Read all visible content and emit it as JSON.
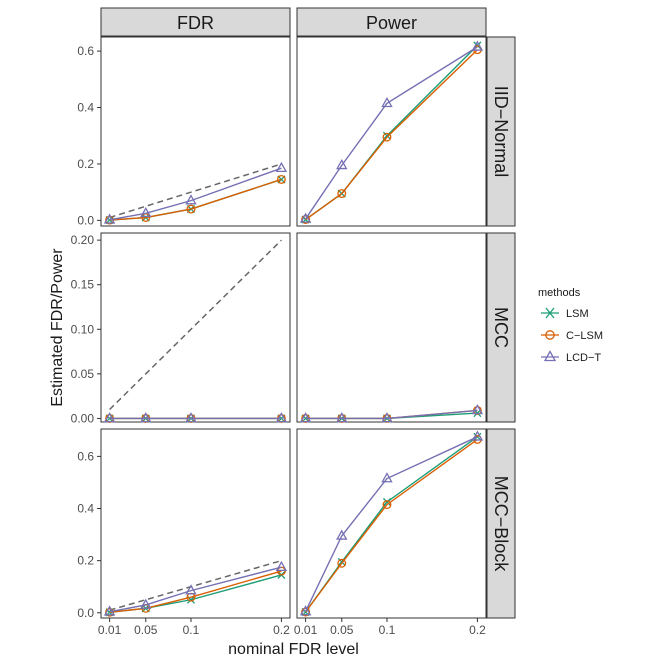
{
  "chart_data": {
    "type": "line",
    "xlabel": "nominal FDR level",
    "ylabel": "Estimated FDR/Power",
    "x": [
      0.01,
      0.05,
      0.1,
      0.2
    ],
    "x_tick_labels": [
      "0.01",
      "0.05",
      "0.1",
      "0.2"
    ],
    "columns": [
      "FDR",
      "Power"
    ],
    "rows": [
      "IID−Normal",
      "MCC",
      "MCC−Block"
    ],
    "legend": {
      "title": "methods",
      "position": "right",
      "entries": [
        {
          "name": "LSM",
          "color": "#1b9e77",
          "marker": "x"
        },
        {
          "name": "C−LSM",
          "color": "#d95f02",
          "marker": "circle"
        },
        {
          "name": "LCD−T",
          "color": "#7570b3",
          "marker": "triangle"
        }
      ]
    },
    "reference_line": {
      "style": "dashed",
      "color": "#666666",
      "description": "y = nominal level (FDR column only)"
    },
    "panels": [
      {
        "row": 0,
        "col": 0,
        "ylim": [
          -0.02,
          0.65
        ],
        "yticks": [
          0.0,
          0.2,
          0.4,
          0.6
        ],
        "ytick_labels": [
          "0.0",
          "0.2",
          "0.4",
          "0.6"
        ],
        "reference": true,
        "series": [
          {
            "name": "LSM",
            "values": [
              0.001,
              0.01,
              0.04,
              0.145
            ]
          },
          {
            "name": "C−LSM",
            "values": [
              0.001,
              0.01,
              0.04,
              0.145
            ]
          },
          {
            "name": "LCD−T",
            "values": [
              0.002,
              0.025,
              0.07,
              0.185
            ]
          }
        ]
      },
      {
        "row": 0,
        "col": 1,
        "ylim": [
          -0.02,
          0.65
        ],
        "reference": false,
        "series": [
          {
            "name": "LSM",
            "values": [
              0.003,
              0.095,
              0.3,
              0.62
            ]
          },
          {
            "name": "C−LSM",
            "values": [
              0.003,
              0.095,
              0.295,
              0.605
            ]
          },
          {
            "name": "LCD−T",
            "values": [
              0.005,
              0.195,
              0.415,
              0.615
            ]
          }
        ]
      },
      {
        "row": 1,
        "col": 0,
        "ylim": [
          -0.004,
          0.208
        ],
        "yticks": [
          0.0,
          0.05,
          0.1,
          0.15,
          0.2
        ],
        "ytick_labels": [
          "0.00",
          "0.05",
          "0.10",
          "0.15",
          "0.20"
        ],
        "reference": true,
        "series": [
          {
            "name": "LSM",
            "values": [
              0.0,
              0.0,
              0.0,
              0.0
            ]
          },
          {
            "name": "C−LSM",
            "values": [
              0.0,
              0.0,
              0.0,
              0.0
            ]
          },
          {
            "name": "LCD−T",
            "values": [
              0.0,
              0.0,
              0.0,
              0.0
            ]
          }
        ]
      },
      {
        "row": 1,
        "col": 1,
        "ylim": [
          -0.004,
          0.208
        ],
        "reference": false,
        "series": [
          {
            "name": "LSM",
            "values": [
              0.0,
              0.0,
              0.0,
              0.006
            ]
          },
          {
            "name": "C−LSM",
            "values": [
              0.0,
              0.0,
              0.0,
              0.009
            ]
          },
          {
            "name": "LCD−T",
            "values": [
              0.0,
              0.0,
              0.0,
              0.009
            ]
          }
        ]
      },
      {
        "row": 2,
        "col": 0,
        "ylim": [
          -0.02,
          0.705
        ],
        "yticks": [
          0.0,
          0.2,
          0.4,
          0.6
        ],
        "ytick_labels": [
          "0.0",
          "0.2",
          "0.4",
          "0.6"
        ],
        "reference": true,
        "series": [
          {
            "name": "LSM",
            "values": [
              0.002,
              0.017,
              0.05,
              0.145
            ]
          },
          {
            "name": "C−LSM",
            "values": [
              0.002,
              0.017,
              0.06,
              0.16
            ]
          },
          {
            "name": "LCD−T",
            "values": [
              0.004,
              0.03,
              0.085,
              0.175
            ]
          }
        ]
      },
      {
        "row": 2,
        "col": 1,
        "ylim": [
          -0.02,
          0.705
        ],
        "reference": false,
        "series": [
          {
            "name": "LSM",
            "values": [
              0.003,
              0.195,
              0.425,
              0.675
            ]
          },
          {
            "name": "C−LSM",
            "values": [
              0.003,
              0.19,
              0.415,
              0.665
            ]
          },
          {
            "name": "LCD−T",
            "values": [
              0.005,
              0.295,
              0.515,
              0.675
            ]
          }
        ]
      }
    ]
  }
}
